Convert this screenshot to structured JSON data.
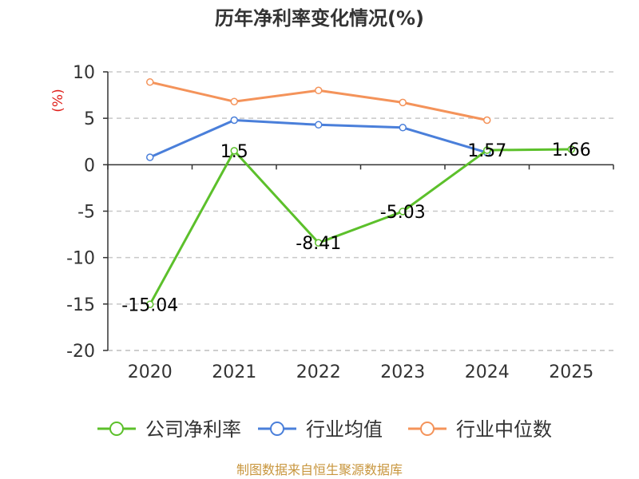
{
  "chart_data": {
    "type": "line",
    "title": "历年净利率变化情况(%)",
    "ylabel": "(%)",
    "ylim": [
      -20,
      10
    ],
    "yticks": [
      10,
      5,
      0,
      -5,
      -10,
      -15,
      -20
    ],
    "categories": [
      "2020",
      "2021",
      "2022",
      "2023",
      "2024",
      "2025"
    ],
    "grid": true,
    "legend_position": "bottom",
    "series": [
      {
        "name": "公司净利率",
        "color": "#5cc02b",
        "values": [
          -15.04,
          1.5,
          -8.41,
          -5.03,
          1.57,
          1.66
        ],
        "labels": [
          "-15.04",
          "1.5",
          "-8.41",
          "-5.03",
          "1.57",
          "1.66"
        ]
      },
      {
        "name": "行业均值",
        "color": "#4a7fda",
        "values": [
          0.8,
          4.8,
          4.3,
          4.0,
          1.3,
          null
        ]
      },
      {
        "name": "行业中位数",
        "color": "#f4935a",
        "values": [
          8.9,
          6.8,
          8.0,
          6.7,
          4.8,
          null
        ]
      }
    ]
  },
  "source": "制图数据来自恒生聚源数据库"
}
